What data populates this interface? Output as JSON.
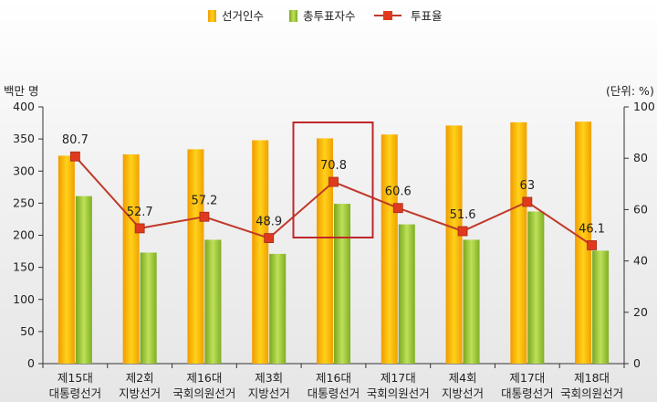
{
  "chart_data": {
    "type": "bar",
    "categories": [
      [
        "제15대",
        "대통령선거"
      ],
      [
        "제2회",
        "지방선거"
      ],
      [
        "제16대",
        "국회의원선거"
      ],
      [
        "제3회",
        "지방선거"
      ],
      [
        "제16대",
        "대통령선거"
      ],
      [
        "제17대",
        "국회의원선거"
      ],
      [
        "제4회",
        "지방선거"
      ],
      [
        "제17대",
        "대통령선거"
      ],
      [
        "제18대",
        "국회의원선거"
      ]
    ],
    "series": [
      {
        "name": "선거인수",
        "type": "bar",
        "axis": "left",
        "values": [
          324,
          326,
          334,
          348,
          351,
          357,
          371,
          376,
          377
        ]
      },
      {
        "name": "총투표자수",
        "type": "bar",
        "axis": "left",
        "values": [
          261,
          173,
          193,
          171,
          249,
          217,
          193,
          237,
          176
        ]
      },
      {
        "name": "투표율",
        "type": "line",
        "axis": "right",
        "values": [
          80.7,
          52.7,
          57.2,
          48.9,
          70.8,
          60.6,
          51.6,
          63,
          46.1
        ],
        "labels": [
          "80.7",
          "52.7",
          "57.2",
          "48.9",
          "70.8",
          "60.6",
          "51.6",
          "63",
          "46.1"
        ]
      }
    ],
    "ylabel": "백만 명",
    "y2label": "(단위: %)",
    "ylim": [
      0,
      400
    ],
    "yticks": [
      0,
      50,
      100,
      150,
      200,
      250,
      300,
      350,
      400
    ],
    "y2lim": [
      0,
      100
    ],
    "y2ticks": [
      0,
      20,
      40,
      60,
      80,
      100
    ],
    "legend_position": "top-center",
    "highlight_category_index": 4,
    "colors": {
      "electorate": "#f5b800",
      "voters": "#9cc43a",
      "turnout_line": "#c0392b",
      "turnout_marker": "#e03a1e",
      "highlight_box": "#c0272d"
    }
  }
}
